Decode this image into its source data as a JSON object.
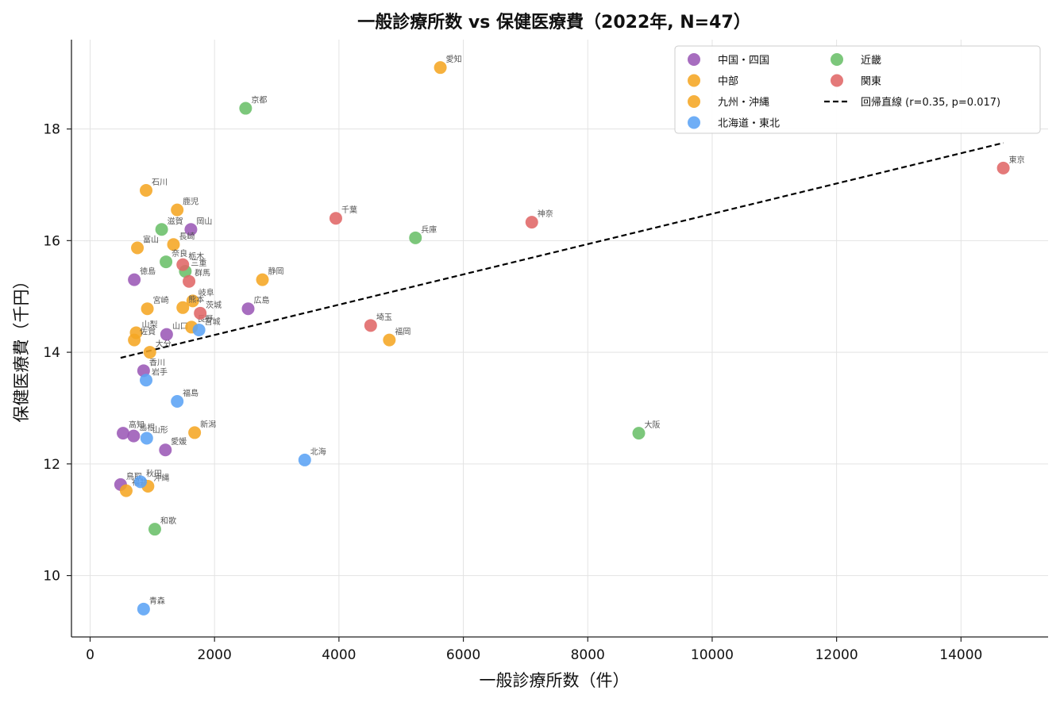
{
  "chart_data": {
    "type": "scatter",
    "title": "一般診療所数 vs 保健医療費（2022年, N=47）",
    "xlabel": "一般診療所数（件）",
    "ylabel": "保健医療費（千円）",
    "xlim": [
      -300,
      15400
    ],
    "ylim": [
      8.9,
      19.6
    ],
    "xticks": [
      0,
      2000,
      4000,
      6000,
      8000,
      10000,
      12000,
      14000
    ],
    "yticks": [
      10,
      12,
      14,
      16,
      18
    ],
    "grid": true,
    "legend_position": "top-right",
    "series": [
      {
        "name": "中国・四国",
        "color": "#9b59b6",
        "points": [
          {
            "label": "岡山",
            "x": 1620,
            "y": 16.2
          },
          {
            "label": "徳島",
            "x": 710,
            "y": 15.3
          },
          {
            "label": "広島",
            "x": 2540,
            "y": 14.78
          },
          {
            "label": "山口",
            "x": 1230,
            "y": 14.32
          },
          {
            "label": "香川",
            "x": 860,
            "y": 13.67
          },
          {
            "label": "高知",
            "x": 530,
            "y": 12.55
          },
          {
            "label": "島根",
            "x": 700,
            "y": 12.5
          },
          {
            "label": "愛媛",
            "x": 1210,
            "y": 12.25
          },
          {
            "label": "鳥取",
            "x": 490,
            "y": 11.63
          }
        ]
      },
      {
        "name": "中部",
        "color": "#f5a623",
        "points": [
          {
            "label": "愛知",
            "x": 5630,
            "y": 19.1
          },
          {
            "label": "石川",
            "x": 900,
            "y": 16.9
          },
          {
            "label": "富山",
            "x": 760,
            "y": 15.87
          },
          {
            "label": "静岡",
            "x": 2770,
            "y": 15.3
          },
          {
            "label": "岐阜",
            "x": 1650,
            "y": 14.92
          },
          {
            "label": "長野",
            "x": 1630,
            "y": 14.45
          },
          {
            "label": "山梨",
            "x": 740,
            "y": 14.35
          },
          {
            "label": "新潟",
            "x": 1680,
            "y": 12.56
          },
          {
            "label": "福井",
            "x": 580,
            "y": 11.52
          }
        ]
      },
      {
        "name": "九州・沖縄",
        "color": "#f5a623",
        "points": [
          {
            "label": "鹿児",
            "x": 1400,
            "y": 16.55
          },
          {
            "label": "長崎",
            "x": 1340,
            "y": 15.93
          },
          {
            "label": "熊本",
            "x": 1490,
            "y": 14.8
          },
          {
            "label": "宮崎",
            "x": 920,
            "y": 14.78
          },
          {
            "label": "佐賀",
            "x": 710,
            "y": 14.22
          },
          {
            "label": "大分",
            "x": 960,
            "y": 14.0
          },
          {
            "label": "福岡",
            "x": 4810,
            "y": 14.22
          },
          {
            "label": "沖縄",
            "x": 930,
            "y": 11.6
          }
        ]
      },
      {
        "name": "北海道・東北",
        "color": "#5ba3f5",
        "points": [
          {
            "label": "宮城",
            "x": 1750,
            "y": 14.4
          },
          {
            "label": "岩手",
            "x": 900,
            "y": 13.5
          },
          {
            "label": "福島",
            "x": 1400,
            "y": 13.12
          },
          {
            "label": "山形",
            "x": 910,
            "y": 12.46
          },
          {
            "label": "北海",
            "x": 3450,
            "y": 12.07
          },
          {
            "label": "秋田",
            "x": 810,
            "y": 11.68
          },
          {
            "label": "青森",
            "x": 860,
            "y": 9.4
          }
        ]
      },
      {
        "name": "近畿",
        "color": "#6abf69",
        "points": [
          {
            "label": "京都",
            "x": 2500,
            "y": 18.37
          },
          {
            "label": "兵庫",
            "x": 5230,
            "y": 16.05
          },
          {
            "label": "滋賀",
            "x": 1150,
            "y": 16.2
          },
          {
            "label": "奈良",
            "x": 1220,
            "y": 15.62
          },
          {
            "label": "三重",
            "x": 1530,
            "y": 15.45
          },
          {
            "label": "大阪",
            "x": 8820,
            "y": 12.55
          },
          {
            "label": "和歌",
            "x": 1040,
            "y": 10.83
          }
        ]
      },
      {
        "name": "関東",
        "color": "#e06666",
        "points": [
          {
            "label": "東京",
            "x": 14680,
            "y": 17.3
          },
          {
            "label": "神奈",
            "x": 7100,
            "y": 16.33
          },
          {
            "label": "千葉",
            "x": 3950,
            "y": 16.4
          },
          {
            "label": "栃木",
            "x": 1490,
            "y": 15.57
          },
          {
            "label": "群馬",
            "x": 1590,
            "y": 15.27
          },
          {
            "label": "茨城",
            "x": 1770,
            "y": 14.7
          },
          {
            "label": "埼玉",
            "x": 4510,
            "y": 14.48
          }
        ]
      }
    ],
    "regression": {
      "name": "回帰直線 (r=0.35, p=0.017)",
      "x": [
        490,
        14680
      ],
      "y": [
        13.9,
        17.75
      ],
      "color": "#000000"
    }
  }
}
